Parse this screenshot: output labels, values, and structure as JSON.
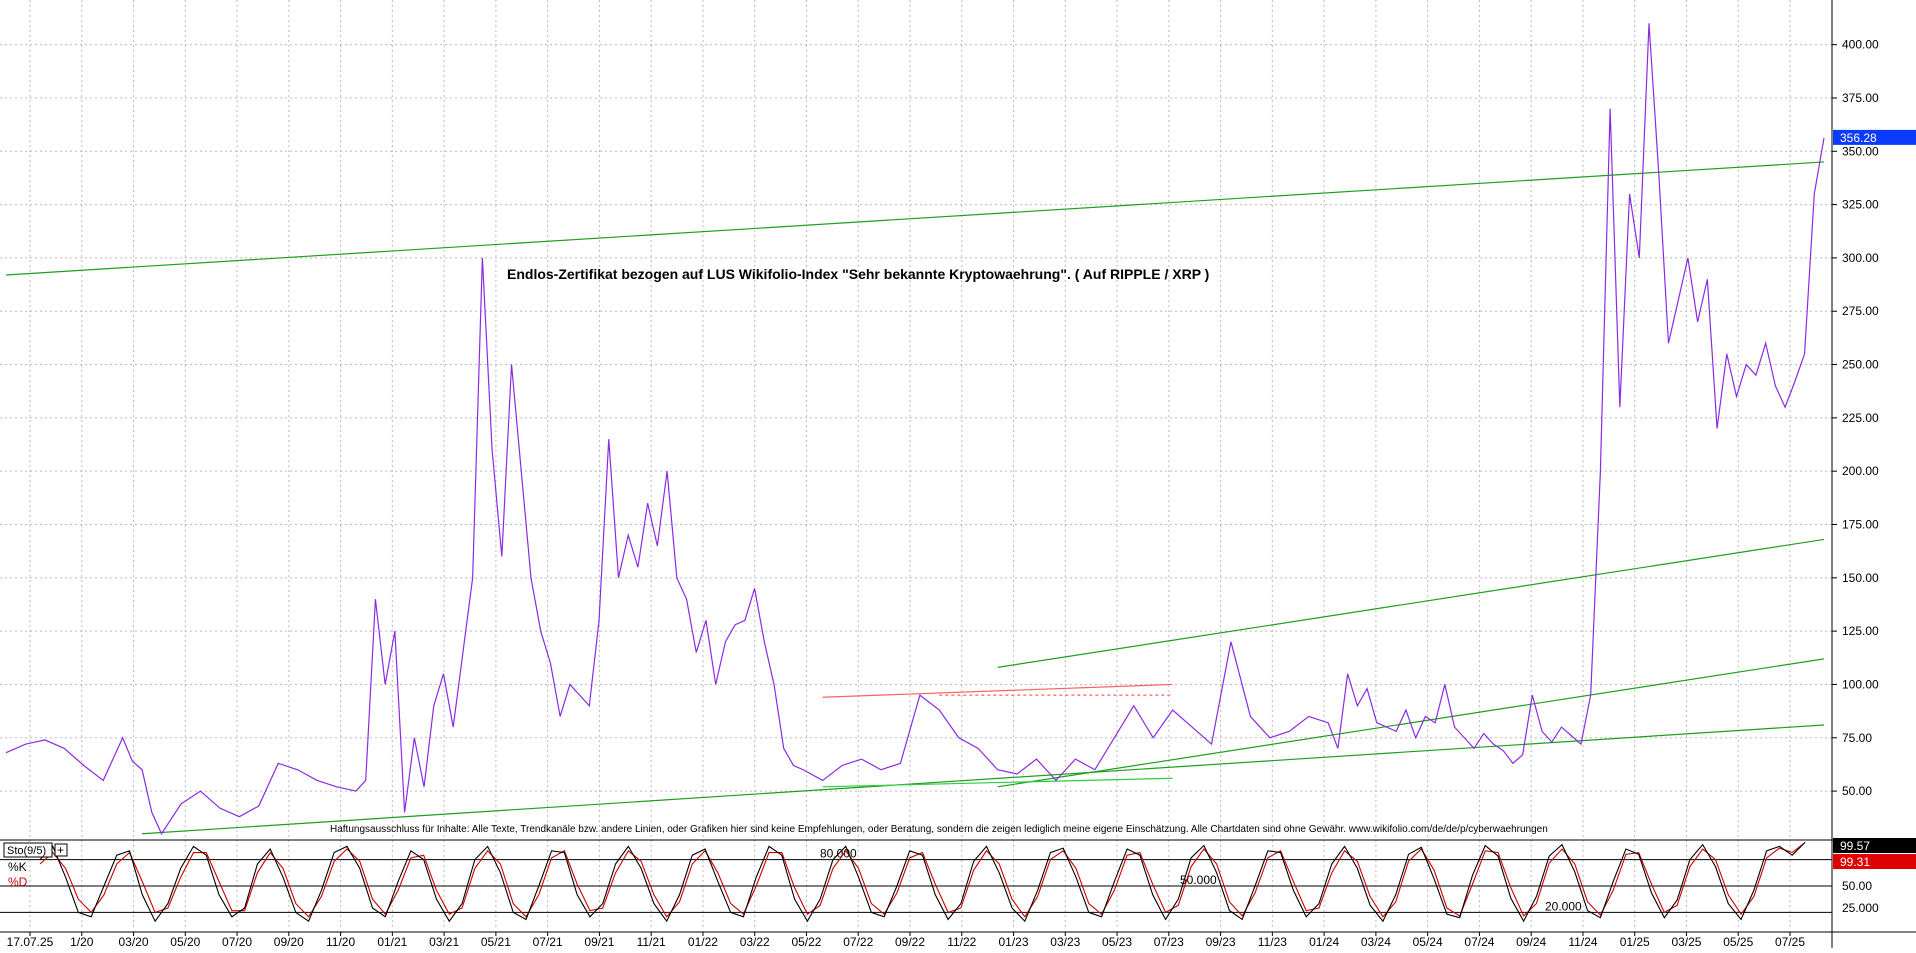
{
  "chart_data": [
    {
      "type": "line",
      "title": "Endlos-Zertifikat bezogen auf LUS Wikifolio-Index \"Sehr bekannte Kryptowaehrung\". ( Auf RIPPLE / XRP )",
      "disclaimer": "Haftungsausschluss für Inhalte: Alle Texte, Trendkanäle bzw. andere Linien, oder Grafiken hier sind keine Empfehlungen, oder Beratung, sondern die zeigen lediglich meine eigene Einschätzung. Alle Chartdaten sind ohne Gewähr. www.wikifolio.com/de/de/p/cyberwaehrungen",
      "x_tick_labels": [
        "17.07.25",
        "1/20",
        "03/20",
        "05/20",
        "07/20",
        "09/20",
        "11/20",
        "01/21",
        "03/21",
        "05/21",
        "07/21",
        "09/21",
        "11/21",
        "01/22",
        "03/22",
        "05/22",
        "07/22",
        "09/22",
        "11/22",
        "01/23",
        "03/23",
        "05/23",
        "07/23",
        "09/23",
        "11/23",
        "01/24",
        "03/24",
        "05/24",
        "07/24",
        "09/24",
        "11/24",
        "01/25",
        "03/25",
        "05/25",
        "07/25"
      ],
      "y_ticks": [
        "50.00",
        "75.00",
        "100.00",
        "125.00",
        "150.00",
        "175.00",
        "200.00",
        "225.00",
        "250.00",
        "275.00",
        "300.00",
        "325.00",
        "350.00",
        "375.00",
        "400.00"
      ],
      "ylim": [
        28,
        420
      ],
      "last_value_label": "356.28",
      "grid": true,
      "series": [
        {
          "color": "#8a2be2",
          "x": [
            0,
            2,
            4,
            6,
            8,
            10,
            12,
            13,
            14,
            15,
            16,
            18,
            20,
            22,
            24,
            26,
            28,
            30,
            32,
            34,
            35,
            36,
            37,
            38,
            39,
            40,
            41,
            42,
            43,
            44,
            45,
            46,
            47,
            48,
            49,
            50,
            51,
            52,
            53,
            54,
            55,
            56,
            57,
            58,
            59,
            60,
            61,
            62,
            63,
            64,
            65,
            66,
            67,
            68,
            69,
            70,
            71,
            72,
            73,
            74,
            75,
            76,
            77,
            78,
            79,
            80,
            81,
            82,
            84,
            86,
            88,
            90,
            92,
            94,
            96,
            98,
            100,
            102,
            104,
            106,
            108,
            110,
            112,
            114,
            116,
            118,
            120,
            122,
            124,
            126,
            128,
            130,
            132,
            134,
            136,
            137,
            138,
            139,
            140,
            141,
            142,
            143,
            144,
            145,
            146,
            147,
            148,
            149,
            150,
            151,
            152,
            153,
            154,
            155,
            156,
            157,
            158,
            159,
            160,
            161,
            162,
            163,
            164,
            165,
            166,
            167,
            168,
            169,
            170,
            171,
            172,
            173,
            174,
            175,
            176,
            177,
            178,
            179,
            180,
            181,
            182,
            183,
            184,
            185,
            186,
            187
          ],
          "values": [
            68,
            72,
            74,
            70,
            62,
            55,
            75,
            64,
            60,
            40,
            30,
            44,
            50,
            42,
            38,
            43,
            63,
            60,
            55,
            52,
            51,
            50,
            55,
            140,
            100,
            125,
            40,
            75,
            52,
            90,
            105,
            80,
            115,
            150,
            300,
            210,
            160,
            250,
            200,
            150,
            125,
            110,
            85,
            100,
            95,
            90,
            130,
            215,
            150,
            170,
            155,
            185,
            165,
            200,
            150,
            140,
            115,
            130,
            100,
            120,
            128,
            130,
            145,
            120,
            100,
            70,
            62,
            60,
            55,
            62,
            65,
            60,
            63,
            95,
            88,
            75,
            70,
            60,
            58,
            65,
            55,
            65,
            60,
            75,
            90,
            75,
            88,
            80,
            72,
            120,
            85,
            75,
            78,
            85,
            82,
            70,
            105,
            90,
            98,
            82,
            80,
            78,
            88,
            75,
            85,
            82,
            100,
            80,
            75,
            70,
            77,
            72,
            69,
            63,
            67,
            95,
            78,
            73,
            80,
            76,
            72,
            95,
            200,
            370,
            230,
            330,
            300,
            410,
            340,
            260,
            280,
            300,
            270,
            290,
            220,
            255,
            235,
            250,
            245,
            260,
            240,
            230,
            242,
            255,
            330,
            356.28
          ]
        }
      ],
      "trend_lines": [
        {
          "color": "#1e9e1e",
          "x": [
            0,
            187
          ],
          "values": [
            292,
            345
          ],
          "note": "upper"
        },
        {
          "color": "#1e9e1e",
          "x": [
            102,
            187
          ],
          "values": [
            108,
            168
          ],
          "note": "mid"
        },
        {
          "color": "#1e9e1e",
          "x": [
            102,
            187
          ],
          "values": [
            52,
            112
          ],
          "note": "lower2"
        },
        {
          "color": "#1e9e1e",
          "x": [
            14,
            187
          ],
          "values": [
            30,
            81
          ],
          "note": "base"
        },
        {
          "color": "#ff6060",
          "x": [
            84,
            120
          ],
          "values": [
            94,
            100
          ],
          "note": "red"
        },
        {
          "color": "#ff6060",
          "x": [
            96,
            120
          ],
          "values": [
            95,
            95
          ],
          "note": "red-dotted"
        },
        {
          "color": "#2ecc40",
          "x": [
            84,
            120
          ],
          "values": [
            52,
            56
          ],
          "note": "light-green"
        }
      ]
    },
    {
      "type": "line",
      "indicator_label": "Sto(9/5)",
      "k_label": "%K",
      "d_label": "%D",
      "level_labels": [
        "80.000",
        "50.000",
        "20.000"
      ],
      "y_ticks": [
        "25.000",
        "50.00"
      ],
      "last_k": "99.57",
      "last_d": "99.31",
      "ylim": [
        0,
        100
      ],
      "series": [
        {
          "name": "%K",
          "color": "#000000",
          "values": [
            80,
            95,
            60,
            20,
            15,
            50,
            85,
            90,
            40,
            10,
            30,
            70,
            95,
            85,
            40,
            15,
            25,
            75,
            92,
            60,
            20,
            10,
            45,
            88,
            95,
            70,
            25,
            15,
            55,
            90,
            80,
            35,
            10,
            30,
            80,
            95,
            65,
            20,
            12,
            50,
            90,
            88,
            40,
            15,
            30,
            75,
            95,
            70,
            30,
            10,
            40,
            85,
            92,
            55,
            20,
            15,
            60,
            95,
            85,
            35,
            10,
            35,
            80,
            95,
            60,
            20,
            15,
            50,
            90,
            85,
            40,
            12,
            30,
            78,
            95,
            65,
            25,
            10,
            45,
            88,
            93,
            60,
            20,
            15,
            55,
            92,
            85,
            40,
            12,
            35,
            82,
            96,
            65,
            22,
            12,
            50,
            90,
            88,
            45,
            15,
            30,
            75,
            95,
            70,
            28,
            10,
            40,
            86,
            94,
            58,
            18,
            14,
            62,
            96,
            84,
            36,
            10,
            38,
            84,
            97,
            66,
            22,
            14,
            55,
            92,
            86,
            42,
            14,
            34,
            80,
            97,
            72,
            30,
            12,
            45,
            90,
            95,
            85,
            99.57
          ]
        },
        {
          "name": "%D",
          "color": "#cc0000",
          "values": [
            75,
            88,
            70,
            35,
            20,
            40,
            75,
            88,
            55,
            20,
            25,
            60,
            88,
            88,
            55,
            22,
            22,
            65,
            88,
            70,
            30,
            15,
            38,
            78,
            92,
            78,
            35,
            18,
            45,
            82,
            85,
            45,
            18,
            25,
            70,
            90,
            75,
            30,
            15,
            40,
            82,
            90,
            52,
            22,
            25,
            65,
            90,
            78,
            40,
            15,
            32,
            75,
            90,
            65,
            30,
            18,
            50,
            88,
            88,
            48,
            18,
            28,
            70,
            90,
            70,
            30,
            18,
            42,
            82,
            88,
            52,
            20,
            25,
            68,
            90,
            75,
            35,
            15,
            38,
            80,
            90,
            70,
            30,
            18,
            45,
            85,
            88,
            52,
            20,
            28,
            72,
            92,
            75,
            32,
            16,
            42,
            82,
            90,
            55,
            22,
            25,
            65,
            90,
            78,
            38,
            15,
            32,
            78,
            92,
            68,
            25,
            16,
            52,
            90,
            88,
            48,
            16,
            30,
            76,
            92,
            75,
            32,
            17,
            45,
            86,
            88,
            52,
            20,
            28,
            72,
            92,
            80,
            40,
            18,
            38,
            82,
            93,
            88,
            99.31
          ]
        }
      ]
    }
  ]
}
